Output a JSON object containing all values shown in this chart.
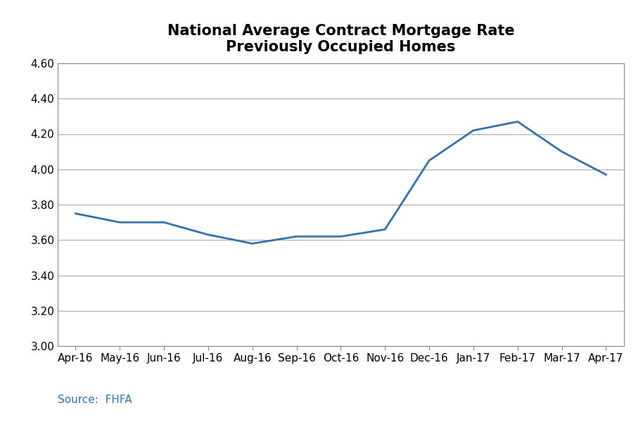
{
  "title": "National Average Contract Mortgage Rate\nPreviously Occupied Homes",
  "x_labels": [
    "Apr-16",
    "May-16",
    "Jun-16",
    "Jul-16",
    "Aug-16",
    "Sep-16",
    "Oct-16",
    "Nov-16",
    "Dec-16",
    "Jan-17",
    "Feb-17",
    "Mar-17",
    "Apr-17"
  ],
  "y_values": [
    3.75,
    3.7,
    3.7,
    3.63,
    3.58,
    3.62,
    3.62,
    3.66,
    4.05,
    4.22,
    4.27,
    4.1,
    3.97
  ],
  "line_color": "#2E75B6",
  "line_width": 2.0,
  "ylim": [
    3.0,
    4.6
  ],
  "yticks": [
    3.0,
    3.2,
    3.4,
    3.6,
    3.8,
    4.0,
    4.2,
    4.4,
    4.6
  ],
  "source_text": "Source:  FHFA",
  "source_color": "#2E75B6",
  "title_fontsize": 15,
  "title_fontweight": "bold",
  "source_fontsize": 11,
  "background_color": "#ffffff",
  "grid_color": "#aaaaaa",
  "tick_label_fontsize": 11,
  "frame_color": "#888888"
}
